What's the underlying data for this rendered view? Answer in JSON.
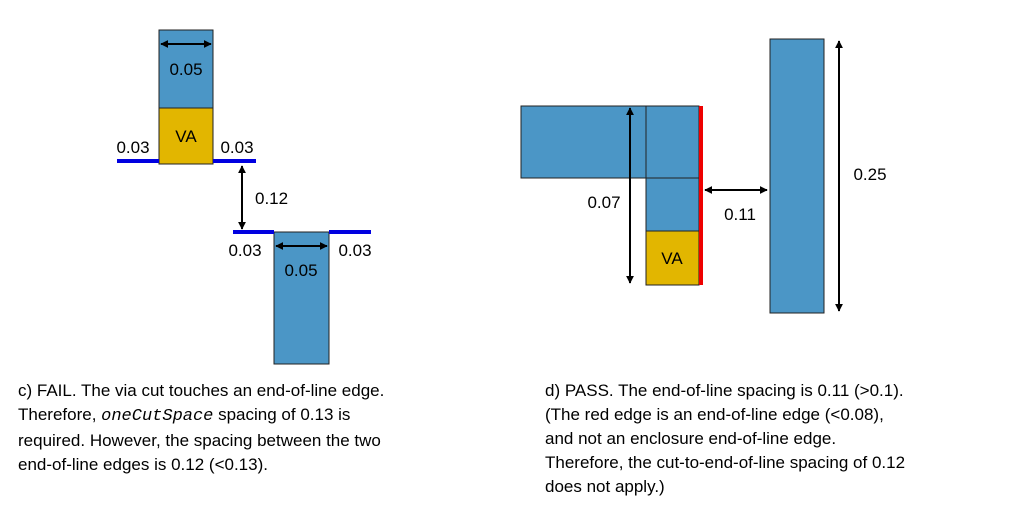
{
  "colors": {
    "metal": "#4b96c6",
    "via": "#e2b600",
    "edge_blue": "#0000e0",
    "edge_red": "#ee0000",
    "highlight_text": "#ee0000"
  },
  "diagram_c": {
    "top_width_label": "0.05",
    "via_label": "VA",
    "top_left_ext_label": "0.03",
    "top_right_ext_label": "0.03",
    "spacing_label": "0.12",
    "bottom_left_ext_label": "0.03",
    "bottom_width_label": "0.05",
    "bottom_right_ext_label": "0.03"
  },
  "diagram_d": {
    "via_label": "VA",
    "height_label": "0.07",
    "spacing_label": "0.11",
    "right_height_label": "0.25"
  },
  "caption_c": {
    "line1": "c) FAIL. The via cut touches an end-of-line edge.",
    "line2_pre": "Therefore, ",
    "line2_code": "oneCutSpace",
    "line2_post": " spacing of 0.13 is",
    "line3": "required. However, the spacing between the two",
    "line4": "end-of-line edges is 0.12 (<0.13)."
  },
  "caption_d": {
    "line1": "d) PASS. The end-of-line spacing is 0.11 (>0.1).",
    "line2": "(The red edge is an end-of-line edge (<0.08),",
    "line3": "and not an enclosure end-of-line edge.",
    "line4": "Therefore, the cut-to-end-of-line spacing of 0.12",
    "line5": "does not apply.)"
  }
}
